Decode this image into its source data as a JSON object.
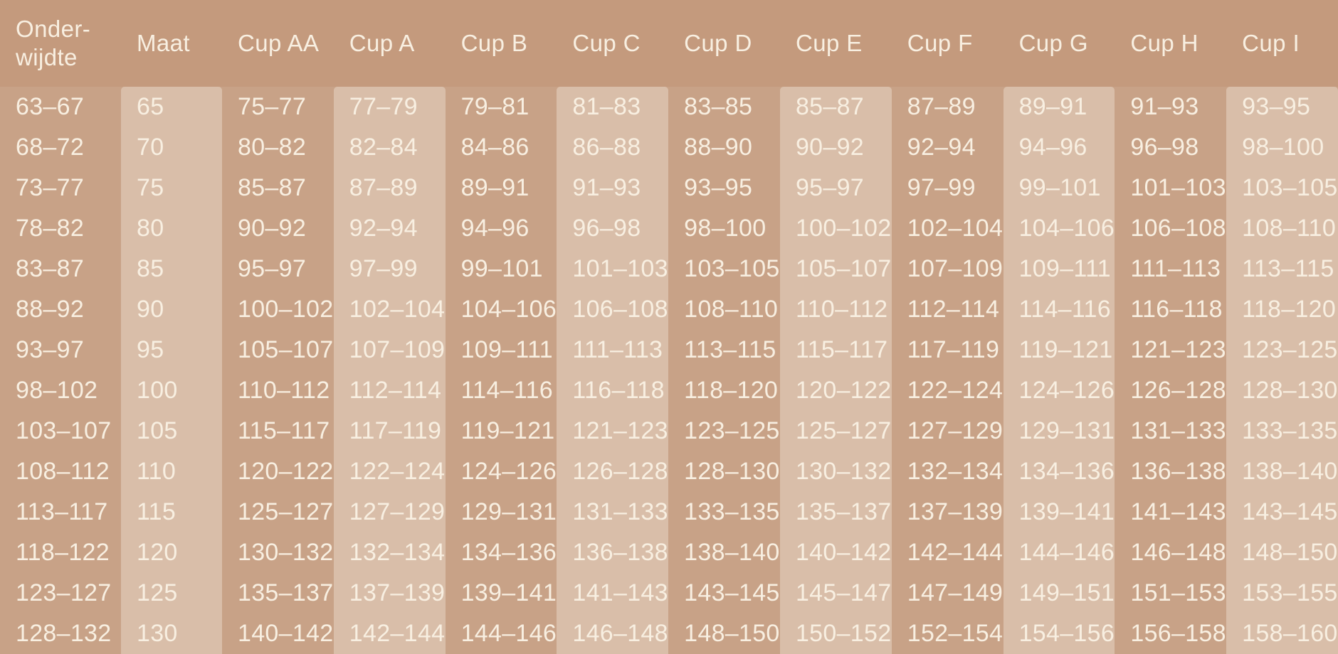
{
  "colors": {
    "header_band": "#c49a7d",
    "column_dark": "#c8a287",
    "column_light": "#d9bea9",
    "text": "#f8efe1"
  },
  "chart_data": {
    "type": "table",
    "columns": [
      "Onder-\nwijdte",
      "Maat",
      "Cup AA",
      "Cup A",
      "Cup B",
      "Cup C",
      "Cup D",
      "Cup E",
      "Cup F",
      "Cup G",
      "Cup H",
      "Cup I"
    ],
    "rows": [
      [
        "63–67",
        "65",
        "75–77",
        "77–79",
        "79–81",
        "81–83",
        "83–85",
        "85–87",
        "87–89",
        "89–91",
        "91–93",
        "93–95"
      ],
      [
        "68–72",
        "70",
        "80–82",
        "82–84",
        "84–86",
        "86–88",
        "88–90",
        "90–92",
        "92–94",
        "94–96",
        "96–98",
        "98–100"
      ],
      [
        "73–77",
        "75",
        "85–87",
        "87–89",
        "89–91",
        "91–93",
        "93–95",
        "95–97",
        "97–99",
        "99–101",
        "101–103",
        "103–105"
      ],
      [
        "78–82",
        "80",
        "90–92",
        "92–94",
        "94–96",
        "96–98",
        "98–100",
        "100–102",
        "102–104",
        "104–106",
        "106–108",
        "108–110"
      ],
      [
        "83–87",
        "85",
        "95–97",
        "97–99",
        "99–101",
        "101–103",
        "103–105",
        "105–107",
        "107–109",
        "109–111",
        "111–113",
        "113–115"
      ],
      [
        "88–92",
        "90",
        "100–102",
        "102–104",
        "104–106",
        "106–108",
        "108–110",
        "110–112",
        "112–114",
        "114–116",
        "116–118",
        "118–120"
      ],
      [
        "93–97",
        "95",
        "105–107",
        "107–109",
        "109–111",
        "111–113",
        "113–115",
        "115–117",
        "117–119",
        "119–121",
        "121–123",
        "123–125"
      ],
      [
        "98–102",
        "100",
        "110–112",
        "112–114",
        "114–116",
        "116–118",
        "118–120",
        "120–122",
        "122–124",
        "124–126",
        "126–128",
        "128–130"
      ],
      [
        "103–107",
        "105",
        "115–117",
        "117–119",
        "119–121",
        "121–123",
        "123–125",
        "125–127",
        "127–129",
        "129–131",
        "131–133",
        "133–135"
      ],
      [
        "108–112",
        "110",
        "120–122",
        "122–124",
        "124–126",
        "126–128",
        "128–130",
        "130–132",
        "132–134",
        "134–136",
        "136–138",
        "138–140"
      ],
      [
        "113–117",
        "115",
        "125–127",
        "127–129",
        "129–131",
        "131–133",
        "133–135",
        "135–137",
        "137–139",
        "139–141",
        "141–143",
        "143–145"
      ],
      [
        "118–122",
        "120",
        "130–132",
        "132–134",
        "134–136",
        "136–138",
        "138–140",
        "140–142",
        "142–144",
        "144–146",
        "146–148",
        "148–150"
      ],
      [
        "123–127",
        "125",
        "135–137",
        "137–139",
        "139–141",
        "141–143",
        "143–145",
        "145–147",
        "147–149",
        "149–151",
        "151–153",
        "153–155"
      ],
      [
        "128–132",
        "130",
        "140–142",
        "142–144",
        "144–146",
        "146–148",
        "148–150",
        "150–152",
        "152–154",
        "154–156",
        "156–158",
        "158–160"
      ]
    ]
  }
}
